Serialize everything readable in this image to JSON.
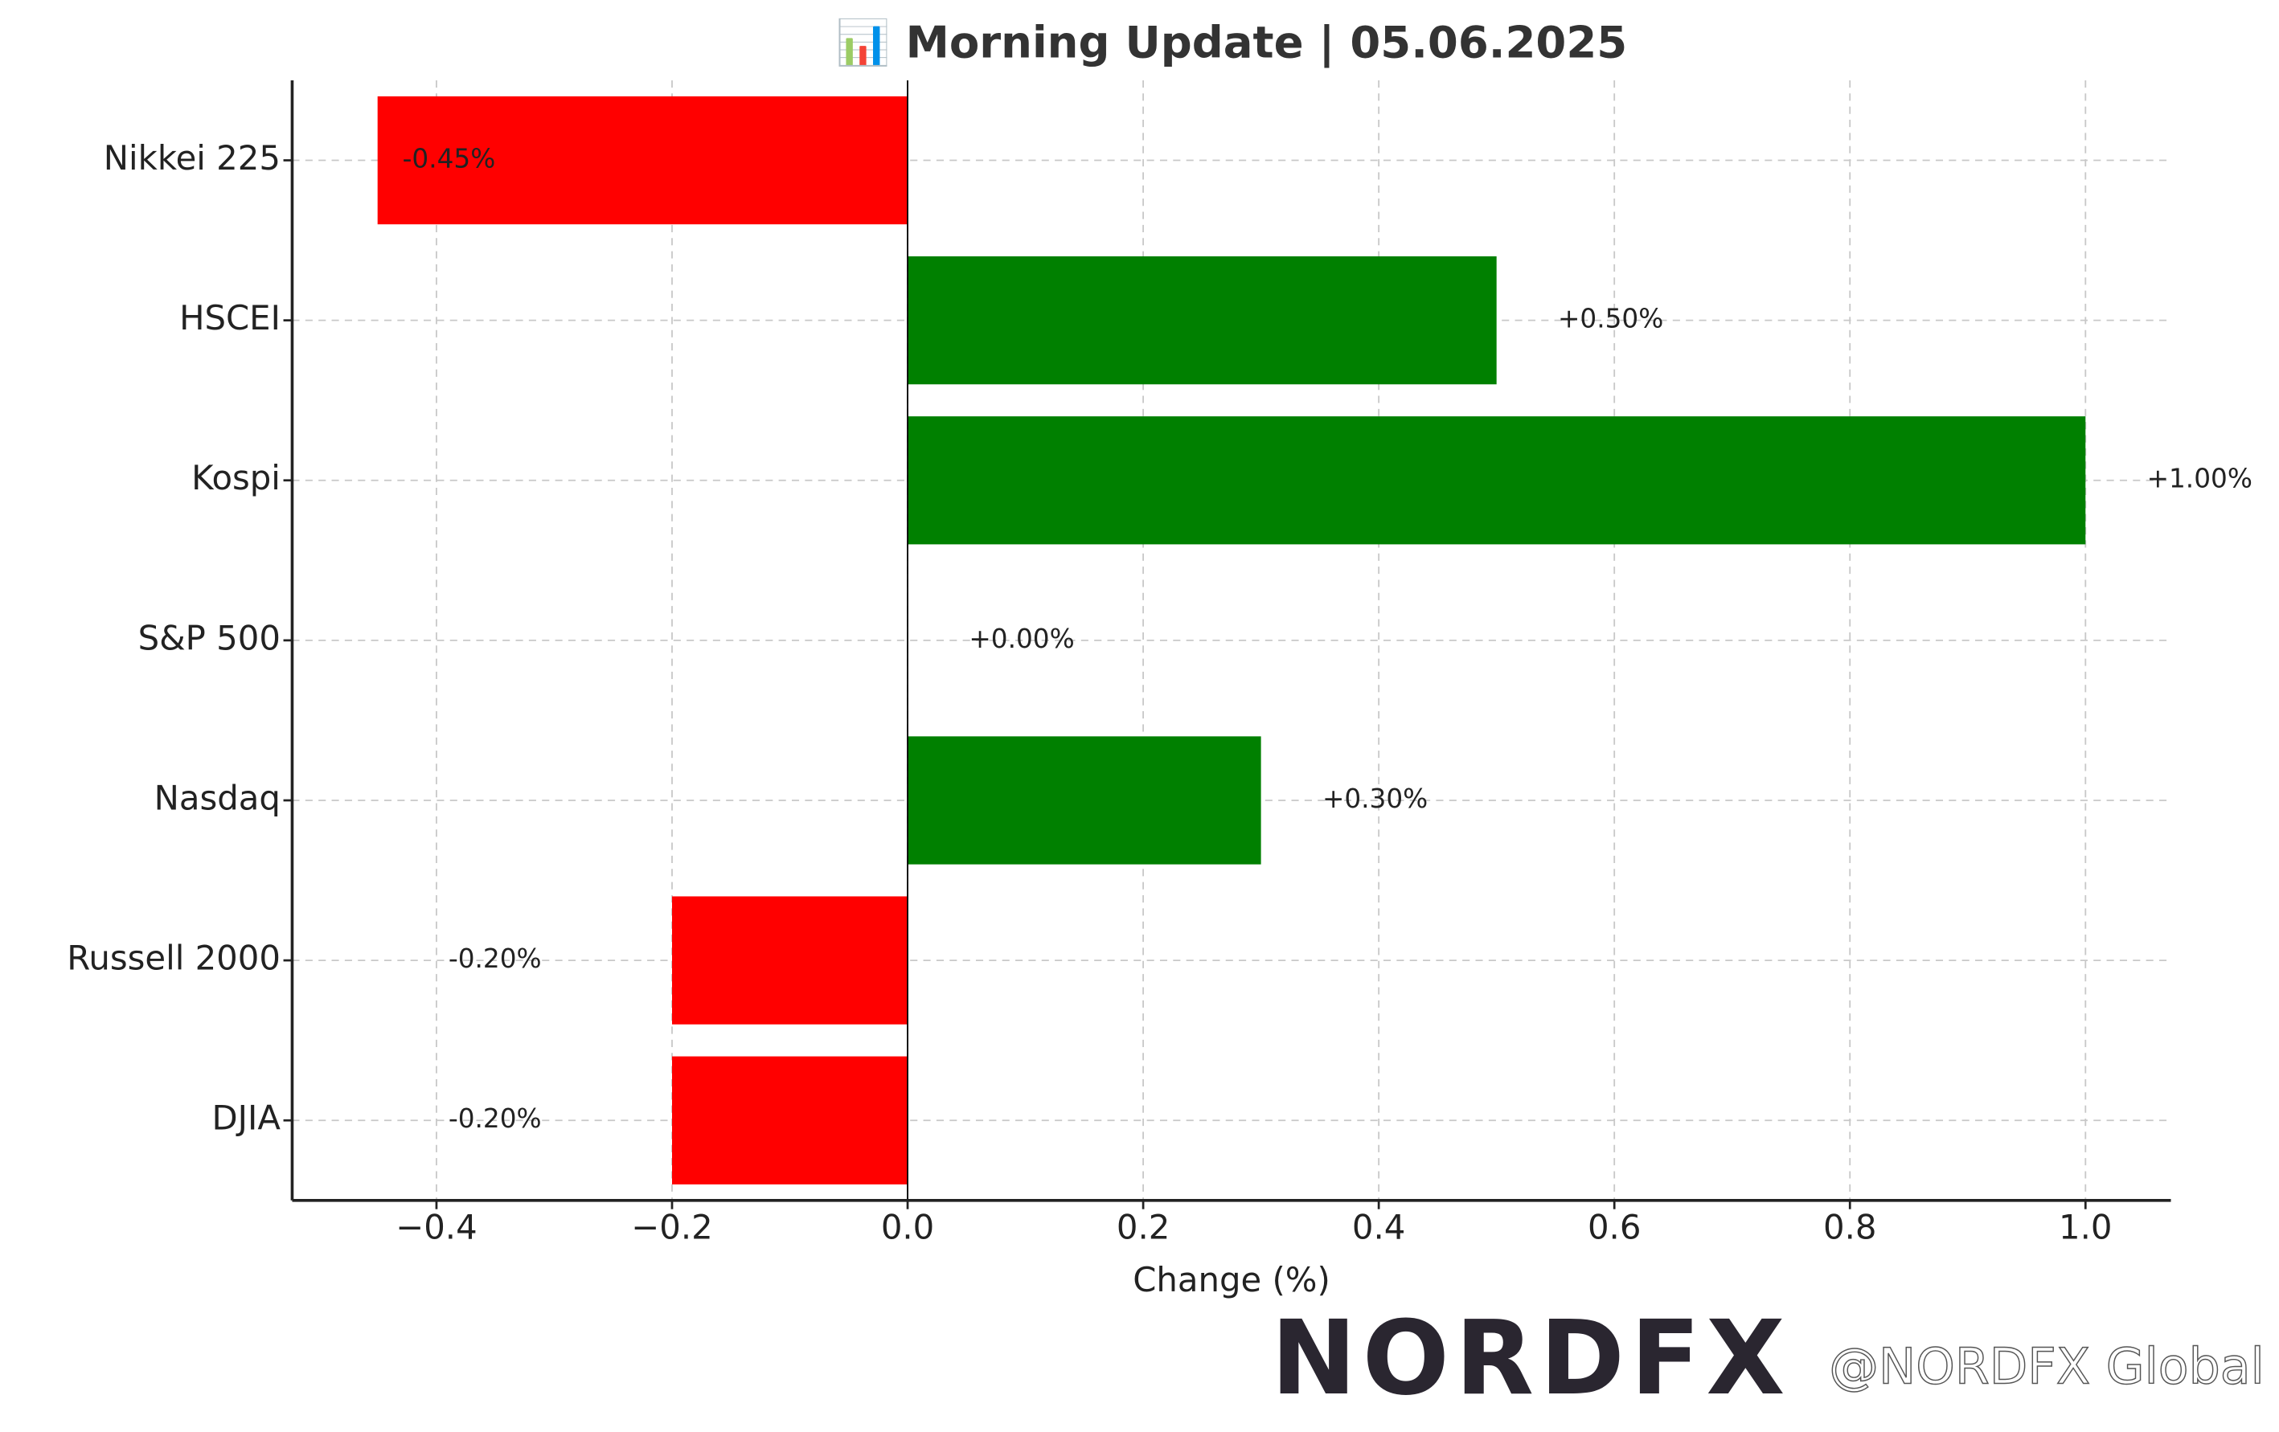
{
  "chart_data": {
    "type": "barh",
    "title": "📊 Morning Update | 05.06.2025",
    "xlabel": "Change (%)",
    "categories": [
      "Nikkei 225",
      "HSCEI",
      "Kospi",
      "S&P 500",
      "Nasdaq",
      "Russell 2000",
      "DJIA"
    ],
    "values": [
      -0.45,
      0.5,
      1.0,
      0.0,
      0.3,
      -0.2,
      -0.2
    ],
    "value_labels": [
      "-0.45%",
      "+0.50%",
      "+1.00%",
      "+0.00%",
      "+0.30%",
      "-0.20%",
      "-0.20%"
    ],
    "colors": [
      "#ff0000",
      "#008000",
      "#008000",
      "#008000",
      "#008000",
      "#ff0000",
      "#ff0000"
    ],
    "xlim": [
      -0.5225,
      1.0725
    ],
    "xticks": [
      {
        "value": -0.4,
        "label": "−0.4"
      },
      {
        "value": -0.2,
        "label": "−0.2"
      },
      {
        "value": 0,
        "label": "0.0"
      },
      0.2,
      0.4,
      0.6,
      0.8,
      {
        "value": 1,
        "label": "1.0"
      }
    ],
    "grid": true
  },
  "watermark": {
    "logo": "NORDFX",
    "handle": "@NORDFX Global"
  }
}
